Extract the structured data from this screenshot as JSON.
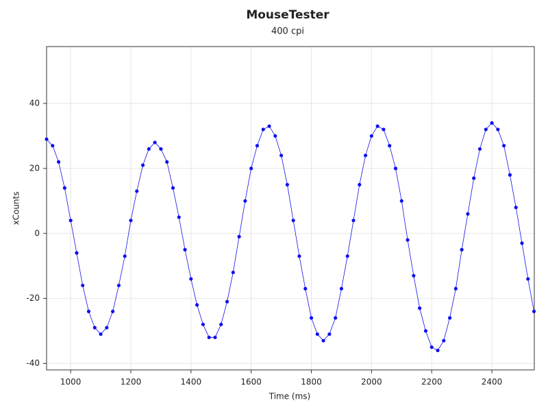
{
  "chart_data": {
    "type": "scatter",
    "title": "MouseTester",
    "subtitle": "400 cpi",
    "x_label": "Time (ms)",
    "y_label": "xCounts",
    "x": [
      920,
      940,
      960,
      980,
      1000,
      1020,
      1040,
      1060,
      1080,
      1100,
      1120,
      1140,
      1160,
      1180,
      1200,
      1220,
      1240,
      1260,
      1280,
      1300,
      1320,
      1340,
      1360,
      1380,
      1400,
      1420,
      1440,
      1460,
      1480,
      1500,
      1520,
      1540,
      1560,
      1580,
      1600,
      1620,
      1640,
      1660,
      1680,
      1700,
      1720,
      1740,
      1760,
      1780,
      1800,
      1820,
      1840,
      1860,
      1880,
      1900,
      1920,
      1940,
      1960,
      1980,
      2000,
      2020,
      2040,
      2060,
      2080,
      2100,
      2120,
      2140,
      2160,
      2180,
      2200,
      2220,
      2240,
      2260,
      2280,
      2300,
      2320,
      2340,
      2360,
      2380,
      2400,
      2420,
      2440,
      2460,
      2480,
      2500,
      2520,
      2540
    ],
    "values": [
      29,
      27,
      22,
      14,
      4,
      -6,
      -16,
      -24,
      -29,
      -31,
      -29,
      -24,
      -16,
      -7,
      4,
      13,
      21,
      26,
      28,
      26,
      22,
      14,
      5,
      -5,
      -14,
      -22,
      -28,
      -32,
      -32,
      -28,
      -21,
      -12,
      -1,
      10,
      20,
      27,
      32,
      33,
      30,
      24,
      15,
      4,
      -7,
      -17,
      -26,
      -31,
      -33,
      -31,
      -26,
      -17,
      -7,
      4,
      15,
      24,
      30,
      33,
      32,
      27,
      20,
      10,
      -2,
      -13,
      -23,
      -30,
      -35,
      -36,
      -33,
      -26,
      -17,
      -5,
      6,
      17,
      26,
      32,
      34,
      32,
      27,
      18,
      8,
      -3,
      -14,
      -24
    ],
    "color": "#1010ee",
    "xlim": [
      920,
      2541
    ],
    "ylim": [
      -42,
      57.5
    ],
    "xticks": [
      1000,
      1200,
      1400,
      1600,
      1800,
      2000,
      2200,
      2400
    ],
    "yticks": [
      -40,
      -20,
      0,
      20,
      40
    ],
    "grid": true
  }
}
